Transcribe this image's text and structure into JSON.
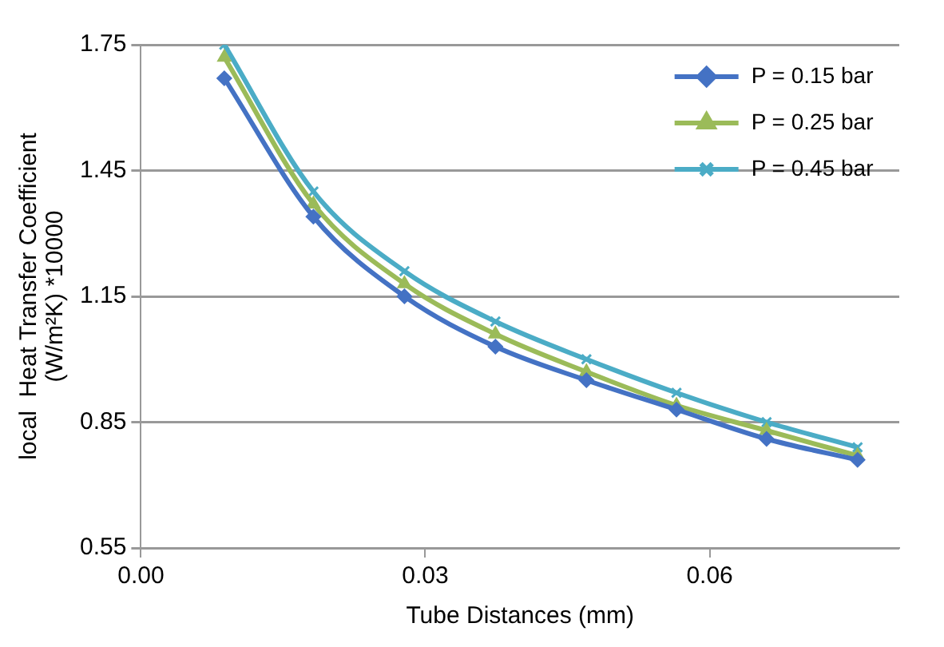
{
  "chart_data": {
    "type": "line",
    "xlabel": "Tube Distances (mm)",
    "ylabel": "local  Heat Transfer Coefficient\n(W/m²K) *10000",
    "x": [
      0.0088,
      0.0182,
      0.0278,
      0.0374,
      0.047,
      0.0565,
      0.066,
      0.0756
    ],
    "xlim": [
      0,
      0.08
    ],
    "xticks": [
      {
        "value": 0,
        "label": "0.00"
      },
      {
        "value": 0.03,
        "label": "0.03"
      },
      {
        "value": 0.06,
        "label": "0.06"
      }
    ],
    "ylim": [
      0.55,
      1.75
    ],
    "yticks": [
      0.55,
      0.85,
      1.15,
      1.45,
      1.75
    ],
    "grid": "y",
    "legend": "top right",
    "line_style": "solid",
    "series": [
      {
        "name": "P = 0.15 bar",
        "color": "#4472c4",
        "marker": "diamond",
        "values": [
          1.67,
          1.34,
          1.15,
          1.03,
          0.95,
          0.88,
          0.81,
          0.76
        ]
      },
      {
        "name": "P = 0.25 bar",
        "color": "#9bbb59",
        "marker": "triangle",
        "values": [
          1.72,
          1.37,
          1.18,
          1.06,
          0.97,
          0.89,
          0.83,
          0.77
        ]
      },
      {
        "name": "P = 0.45 bar",
        "color": "#4bacc6",
        "marker": "cross",
        "values": [
          1.75,
          1.4,
          1.21,
          1.09,
          1.0,
          0.92,
          0.85,
          0.79
        ]
      }
    ]
  }
}
